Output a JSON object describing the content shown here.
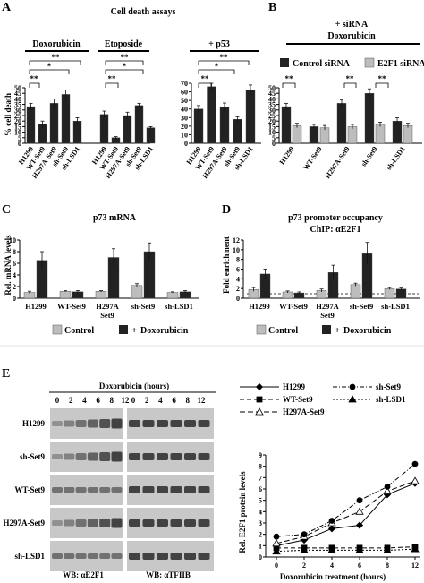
{
  "colors": {
    "dark": "#222222",
    "light": "#bdbdbd",
    "error": "#111111",
    "blot_bg": "#c8c8c8",
    "blot_band": "#2a2a2a"
  },
  "panels": {
    "A": "A",
    "B": "B",
    "C": "C",
    "D": "D",
    "E": "E"
  },
  "titles": {
    "cell_death": "Cell death assays",
    "doxorubicin": "Doxorubicin",
    "etoposide": "Etoposide",
    "p53": "+ p53",
    "sirna_line1": "+ siRNA",
    "sirna_line2": "Doxorubicin",
    "p73_mrna": "p73 mRNA",
    "p73_occ_line1": "p73 promoter occupancy",
    "p73_occ_line2": "ChIP: αE2F1"
  },
  "axis_labels": {
    "cell_death": "% cell death",
    "rel_mrna": "Rel. mRNA levels",
    "fold": "Fold enrichment",
    "rel_e2f1": "Rel. E2F1 protein levels",
    "dox_treatment": "Doxorubicin treatment (hours)"
  },
  "legends": {
    "control_sirna": "Control siRNA",
    "e2f1_sirna": "E2F1 siRNA",
    "control": "Control",
    "doxorubicin": "Doxorubicin",
    "plus": "+"
  },
  "sig": {
    "double": "**",
    "single": "*"
  },
  "blot": {
    "header": "Doxorubicin (hours)",
    "hours": [
      "0",
      "2",
      "4",
      "6",
      "8",
      "12",
      "0",
      "2",
      "4",
      "6",
      "8",
      "12"
    ],
    "rows": [
      "H1299",
      "sh-Set9",
      "WT-Set9",
      "H297A-Set9",
      "sh-LSD1"
    ],
    "wb_left": "WB: αE2F1",
    "wb_right": "WB: αTFIIB"
  },
  "chart_data": [
    {
      "id": "A",
      "type": "bar",
      "title": "Cell death assays",
      "ylabel": "% cell death",
      "ylim": [
        0,
        50
      ],
      "yticks": [
        "0",
        "5",
        "10",
        "15",
        "20",
        "25",
        "30",
        "35",
        "40",
        "45",
        "50"
      ],
      "groups": [
        {
          "name": "Doxorubicin",
          "categories": [
            "H1299",
            "WT-Set9",
            "H297A-Set9",
            "sh-Set9",
            "sh-LSD1"
          ],
          "values": [
            33,
            17,
            36,
            44,
            20
          ],
          "errors": [
            3,
            3,
            4,
            4,
            3
          ]
        },
        {
          "name": "Etoposide",
          "categories": [
            "H1299",
            "WT-Set9",
            "H297A-Set9",
            "sh-Set9",
            "sh-LSD1"
          ],
          "values": [
            26,
            5,
            25,
            34,
            14
          ],
          "errors": [
            3,
            1,
            3,
            2,
            1
          ]
        }
      ]
    },
    {
      "id": "A-p53",
      "type": "bar",
      "title": "+ p53",
      "ylim": [
        0,
        70
      ],
      "yticks": [
        "0",
        "10",
        "20",
        "30",
        "40",
        "50",
        "60",
        "70"
      ],
      "categories": [
        "H1299",
        "WT-Set9",
        "H297A-Set9",
        "sh-Set9",
        "sh-LSD1"
      ],
      "values": [
        40,
        66,
        42,
        28,
        62
      ],
      "errors": [
        4,
        4,
        5,
        3,
        6
      ]
    },
    {
      "id": "B",
      "type": "bar",
      "title": "+ siRNA Doxorubicin",
      "ylim": [
        0,
        50
      ],
      "yticks": [
        "0",
        "5",
        "10",
        "15",
        "20",
        "25",
        "30",
        "35",
        "40",
        "45",
        "50"
      ],
      "categories": [
        "H1299",
        "WT-Set9",
        "H297A-Set9",
        "sh-Set9",
        "sh-LSD1"
      ],
      "series": [
        {
          "name": "Control siRNA",
          "values": [
            33,
            15,
            36,
            45,
            20
          ],
          "errors": [
            3,
            2,
            3,
            4,
            3
          ]
        },
        {
          "name": "E2F1 siRNA",
          "values": [
            16,
            14,
            15,
            17,
            16
          ],
          "errors": [
            2,
            2,
            2,
            2,
            2
          ]
        }
      ]
    },
    {
      "id": "C",
      "type": "bar",
      "title": "p73 mRNA",
      "ylabel": "Rel. mRNA levels",
      "ylim": [
        0,
        10
      ],
      "yticks": [
        "0",
        "2",
        "4",
        "6",
        "8",
        "10"
      ],
      "categories": [
        "H1299",
        "WT-Set9",
        "H297A Set9",
        "sh-Set9",
        "sh-LSD1"
      ],
      "series": [
        {
          "name": "Control",
          "values": [
            1.0,
            1.2,
            1.2,
            2.2,
            1.0
          ],
          "errors": [
            0.2,
            0.1,
            0.1,
            0.3,
            0.1
          ]
        },
        {
          "name": "Doxorubicin",
          "values": [
            6.5,
            1.1,
            7.0,
            8.0,
            1.1
          ],
          "errors": [
            1.5,
            0.2,
            1.5,
            1.5,
            0.2
          ]
        }
      ]
    },
    {
      "id": "D",
      "type": "bar",
      "title": "p73 promoter occupancy ChIP: αE2F1",
      "ylabel": "Fold enrichment",
      "ylim": [
        0,
        12
      ],
      "yticks": [
        "0",
        "2",
        "4",
        "6",
        "8",
        "10",
        "12"
      ],
      "categories": [
        "H1299",
        "WT-Set9",
        "H297A Set9",
        "sh-Set9",
        "sh-LSD1"
      ],
      "series": [
        {
          "name": "Control",
          "values": [
            1.8,
            1.3,
            1.6,
            2.8,
            2.0
          ],
          "errors": [
            0.4,
            0.2,
            0.3,
            0.3,
            0.2
          ]
        },
        {
          "name": "Doxorubicin",
          "values": [
            5.0,
            1.1,
            5.3,
            9.2,
            1.9
          ],
          "errors": [
            1.0,
            0.2,
            1.5,
            2.3,
            0.2
          ]
        }
      ]
    },
    {
      "id": "E-line",
      "type": "line",
      "xlabel": "Doxorubicin treatment (hours)",
      "ylabel": "Rel. E2F1 protein levels",
      "ylim": [
        0,
        9
      ],
      "yticks": [
        "0",
        "1",
        "2",
        "3",
        "4",
        "5",
        "6",
        "7",
        "8",
        "9"
      ],
      "xticks": [
        "0",
        "2",
        "4",
        "6",
        "8",
        "12"
      ],
      "x": [
        0,
        2,
        4,
        6,
        8,
        10
      ],
      "series": [
        {
          "name": "H1299",
          "values": [
            1.0,
            1.5,
            2.5,
            2.8,
            5.5,
            6.5
          ]
        },
        {
          "name": "WT-Set9",
          "values": [
            0.8,
            0.8,
            0.8,
            0.8,
            0.8,
            0.9
          ]
        },
        {
          "name": "H297A-Set9",
          "values": [
            1.2,
            1.8,
            3.0,
            4.0,
            5.8,
            6.7
          ]
        },
        {
          "name": "sh-Set9",
          "values": [
            1.8,
            2.0,
            3.2,
            5.0,
            6.2,
            8.2
          ]
        },
        {
          "name": "sh-LSD1",
          "values": [
            0.5,
            0.6,
            0.6,
            0.6,
            0.6,
            0.7
          ]
        }
      ]
    }
  ]
}
